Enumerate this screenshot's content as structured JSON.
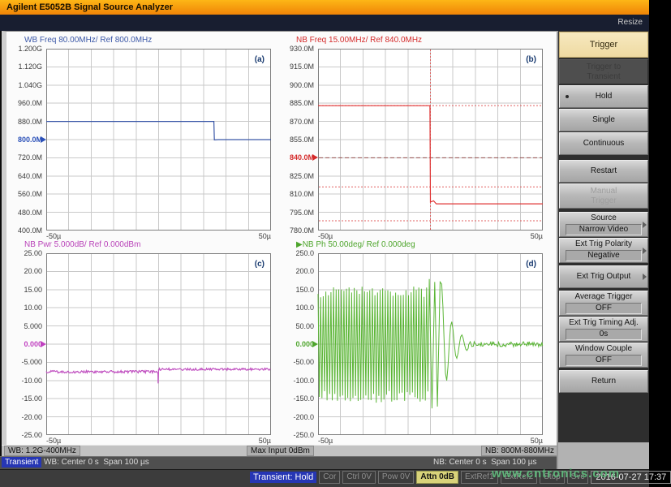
{
  "title_bar": {
    "title": "Agilent E5052B Signal Source Analyzer"
  },
  "menu_strip": {
    "resize_label": "Resize"
  },
  "info_bar": {
    "wb_range": "WB: 1.2G-400MHz",
    "max_input": "Max Input 0dBm",
    "nb_range": "NB: 800M-880MHz"
  },
  "transient_bar": {
    "badge": "Transient",
    "wb_text": "WB: Center 0 s  Span 100 µs",
    "nb_text": "NB: Center 0 s  Span 100 µs"
  },
  "status_bar": {
    "mode_badge": "Transient: Hold",
    "segments": [
      {
        "label": "Cor",
        "state": "dim"
      },
      {
        "label": "Ctrl 0V",
        "state": "dim"
      },
      {
        "label": "Pow 0V",
        "state": "dim"
      },
      {
        "label": "Attn 0dB",
        "state": "yellow"
      },
      {
        "label": "ExtRef1",
        "state": "dim"
      },
      {
        "label": "ExtRef2",
        "state": "dim"
      },
      {
        "label": "Stop",
        "state": "dim"
      },
      {
        "label": "Svc",
        "state": "dim"
      }
    ],
    "datetime": "2016-07-27 17:37"
  },
  "watermark": "www.cntronics.com",
  "sidebar": {
    "header": "Trigger",
    "buttons": [
      {
        "lines": [
          "Trigger to",
          "Transient"
        ],
        "state": "disabled-dark"
      },
      {
        "lines": [
          "Hold"
        ],
        "bullet": true
      },
      {
        "lines": [
          "Single"
        ]
      },
      {
        "lines": [
          "Continuous"
        ],
        "gap": 6
      },
      {
        "lines": [
          "Restart"
        ]
      },
      {
        "lines": [
          "Manual",
          "Trigger"
        ],
        "state": "disabled",
        "gap": 4
      },
      {
        "lines": [
          "Source"
        ],
        "value": "Narrow Video",
        "arrow": true
      },
      {
        "lines": [
          "Ext Trig Polarity"
        ],
        "value": "Negative",
        "arrow": true,
        "gap": 3
      },
      {
        "lines": [
          "Ext Trig Output"
        ],
        "arrow": true,
        "gap": 3
      },
      {
        "lines": [
          "Average Trigger"
        ],
        "value": "OFF"
      },
      {
        "lines": [
          "Ext Trig Timing Adj."
        ],
        "value": "0s"
      },
      {
        "lines": [
          "Window Couple"
        ],
        "value": "OFF",
        "gap": 3
      },
      {
        "lines": [
          "Return"
        ]
      }
    ]
  },
  "chart_data": [
    {
      "key": "a",
      "type": "line",
      "corner_label": "(a)",
      "title": "WB Freq 80.00MHz/ Ref 800.0MHz",
      "color": "#3a57a7",
      "title_color": "#3a57a7",
      "ref_color": "#2a50b8",
      "x_range_us": [
        -50,
        50
      ],
      "x_ticks": [
        "-50µ",
        "50µ"
      ],
      "y_range": [
        400,
        1200
      ],
      "y_unit": "MHz",
      "y_ticks": [
        "1.200G",
        "1.120G",
        "1.040G",
        "960.0M",
        "880.0M",
        "800.0M",
        "720.0M",
        "640.0M",
        "560.0M",
        "480.0M",
        "400.0M"
      ],
      "ref_index": 5,
      "ref_label": "800.0M",
      "grid": true,
      "legend": "none",
      "series": [
        {
          "name": "WB Freq",
          "segments": [
            {
              "kind": "points",
              "pts": [
                [
                  -50,
                  880
                ],
                [
                  24.6,
                  880
                ],
                [
                  24.8,
                  798.5
                ],
                [
                  26.5,
                  800
                ],
                [
                  50,
                  800
                ]
              ]
            }
          ]
        }
      ]
    },
    {
      "key": "b",
      "type": "line",
      "corner_label": "(b)",
      "title": "NB Freq 15.00MHz/ Ref 840.0MHz",
      "color": "#e03434",
      "title_color": "#d42a2a",
      "ref_color": "#d42a2a",
      "x_range_us": [
        -50,
        50
      ],
      "x_ticks": [
        "-50µ",
        "50µ"
      ],
      "y_range": [
        780,
        930
      ],
      "y_unit": "MHz",
      "y_ticks": [
        "930.0M",
        "915.0M",
        "900.0M",
        "885.0M",
        "870.0M",
        "855.0M",
        "840.0M",
        "825.0M",
        "810.0M",
        "795.0M",
        "780.0M"
      ],
      "ref_index": 6,
      "ref_label": "840.0M",
      "grid": true,
      "legend": "none",
      "h_guides": [
        {
          "y": 883,
          "dash": "2,2",
          "color": "#e06060"
        },
        {
          "y": 840,
          "dash": "5,3",
          "color": "#96504f"
        },
        {
          "y": 816,
          "dash": "2,2",
          "color": "#e06060"
        },
        {
          "y": 788,
          "dash": "2,2",
          "color": "#e06060"
        }
      ],
      "v_guides": [
        {
          "x": 0,
          "dash": "2,2",
          "color": "#e06060"
        }
      ],
      "series": [
        {
          "name": "NB Freq",
          "segments": [
            {
              "kind": "points",
              "pts": [
                [
                  -50,
                  883
                ],
                [
                  -0.2,
                  883
                ],
                [
                  0,
                  803.5
                ],
                [
                  1.4,
                  804.5
                ],
                [
                  2.6,
                  802
                ],
                [
                  50,
                  802
                ]
              ]
            }
          ]
        }
      ]
    },
    {
      "key": "c",
      "type": "line",
      "corner_label": "(c)",
      "title": "NB Pwr 5.000dB/ Ref 0.000dBm",
      "color": "#c04fc0",
      "title_color": "#b944b9",
      "ref_color": "#c040c0",
      "x_range_us": [
        -50,
        50
      ],
      "x_ticks": [
        "-50µ",
        "50µ"
      ],
      "y_range": [
        -25,
        25
      ],
      "y_unit": "dBm",
      "y_ticks": [
        "25.00",
        "20.00",
        "15.00",
        "10.00",
        "5.000",
        "0.000",
        "-5.000",
        "-10.00",
        "-15.00",
        "-20.00",
        "-25.00"
      ],
      "ref_index": 5,
      "ref_label": "0.000",
      "grid": true,
      "legend": "none",
      "series": [
        {
          "name": "NB Pwr",
          "segments": [
            {
              "kind": "noisy",
              "x0": -50,
              "x1": -0.4,
              "y": -7.6,
              "noise": 0.35
            },
            {
              "kind": "points",
              "pts": [
                [
                  -0.3,
                  -8
                ],
                [
                  -0.2,
                  -10.8
                ],
                [
                  0,
                  -6.9
                ]
              ]
            },
            {
              "kind": "noisy",
              "x0": 0,
              "x1": 50,
              "y": -6.9,
              "noise": 0.3
            }
          ]
        }
      ]
    },
    {
      "key": "d",
      "type": "line",
      "corner_label": "(d)",
      "title": "▶NB Ph 50.00deg/ Ref 0.000deg",
      "color": "#5cb637",
      "title_color": "#4ea52c",
      "ref_color": "#4ea52c",
      "x_range_us": [
        -50,
        50
      ],
      "x_ticks": [
        "-50µ",
        "50µ"
      ],
      "y_range": [
        -250,
        250
      ],
      "y_unit": "deg",
      "y_ticks": [
        "250.0",
        "200.0",
        "150.0",
        "100.0",
        "50.00",
        "0.000",
        "-50.00",
        "-100.0",
        "-150.0",
        "-200.0",
        "-250.0"
      ],
      "ref_index": 5,
      "ref_label": "0.000",
      "grid": true,
      "legend": "none",
      "series": [
        {
          "name": "NB Ph",
          "segments": [
            {
              "kind": "osc",
              "x0": -50,
              "x1": -0.5,
              "amp": 145,
              "amp_var": 16,
              "period": 1.15
            },
            {
              "kind": "osc",
              "x0": -0.5,
              "x1": 5,
              "amp": 172,
              "amp_var": 8,
              "period": 2.4
            },
            {
              "kind": "decay",
              "x0": 5,
              "x1": 17,
              "amp0": 165,
              "amp1": 6,
              "period": 4.5
            },
            {
              "kind": "noisy",
              "x0": 17,
              "x1": 50,
              "y": 0,
              "noise": 7
            }
          ]
        }
      ]
    }
  ]
}
